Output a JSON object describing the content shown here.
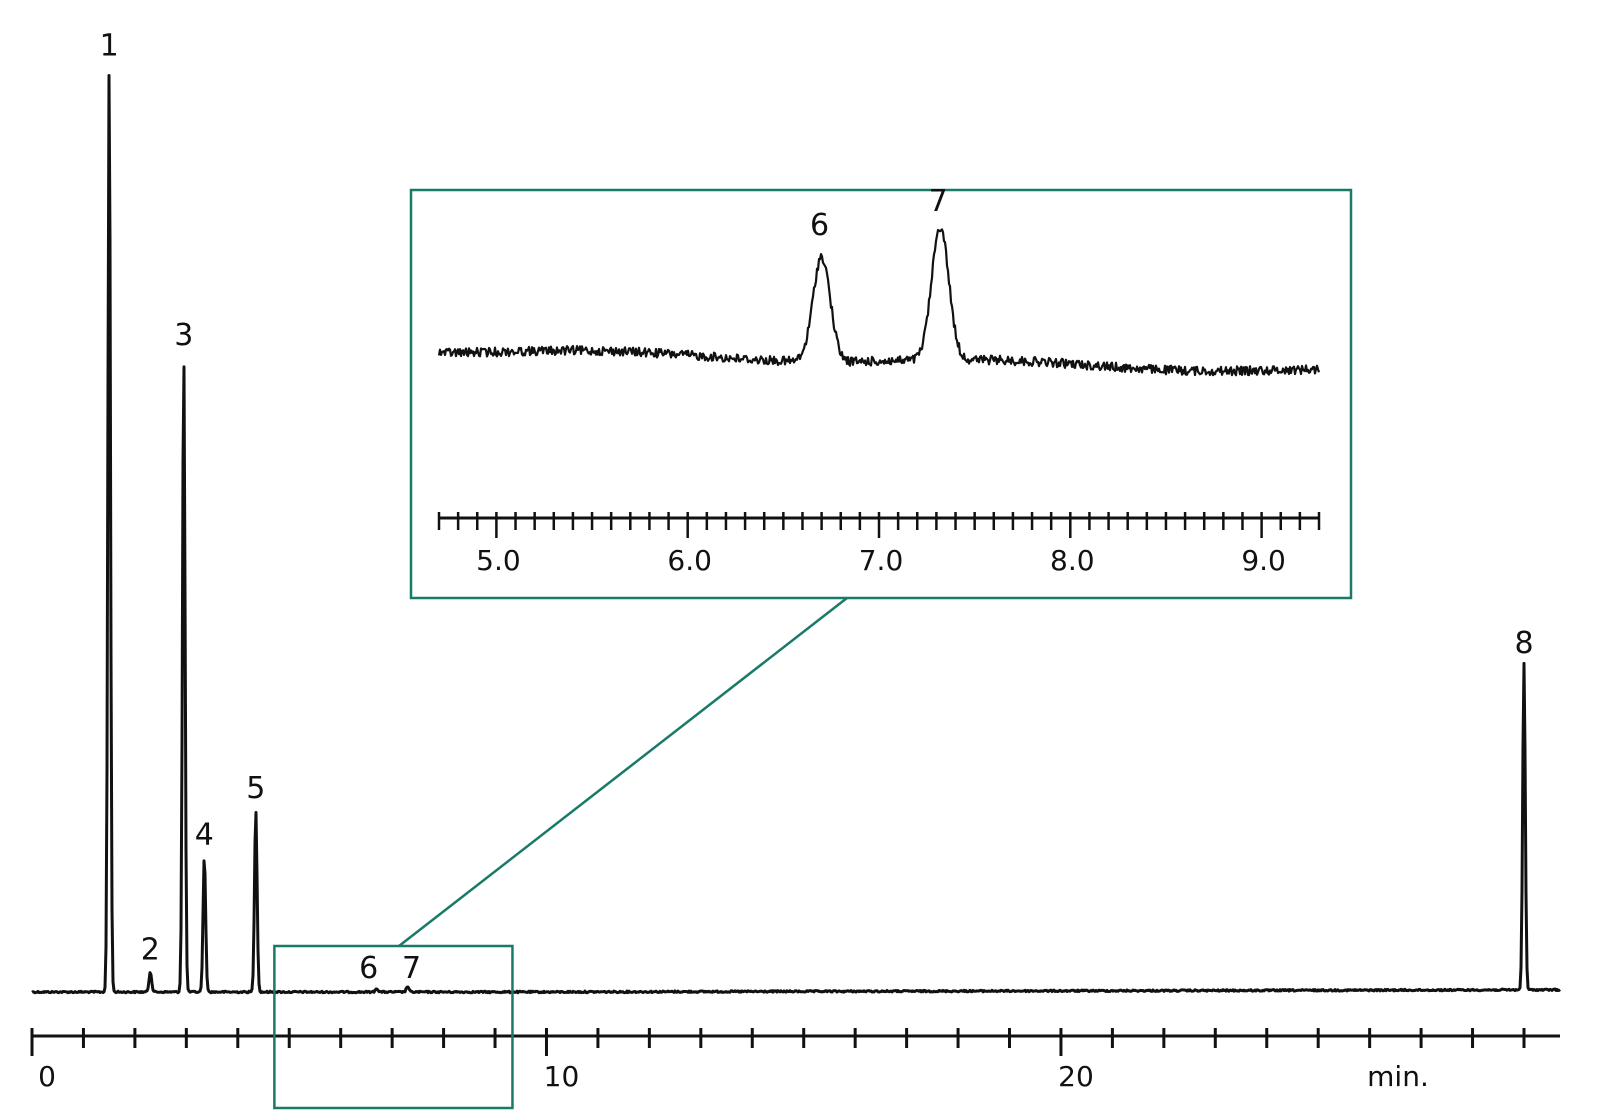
{
  "chart_data": [
    {
      "type": "line",
      "xlabel": "min.",
      "xlim": [
        0,
        29.7
      ],
      "major_ticks": [
        0,
        10,
        20
      ],
      "tick_labels": [
        "0",
        "10",
        "20"
      ],
      "minor_tick_step": 1,
      "peaks": [
        {
          "label": "1",
          "x": 1.5,
          "height": 0.99
        },
        {
          "label": "2",
          "x": 2.3,
          "height": 0.022
        },
        {
          "label": "3",
          "x": 2.95,
          "height": 0.68
        },
        {
          "label": "4",
          "x": 3.35,
          "height": 0.145
        },
        {
          "label": "5",
          "x": 4.35,
          "height": 0.195
        },
        {
          "label": "6",
          "x": 6.7,
          "height": 0.004
        },
        {
          "label": "7",
          "x": 7.3,
          "height": 0.006
        },
        {
          "label": "8",
          "x": 29.0,
          "height": 0.35
        }
      ],
      "zoom_region": [
        4.75,
        9.3
      ]
    },
    {
      "type": "line",
      "xlim": [
        4.7,
        9.3
      ],
      "major_ticks": [
        5.0,
        6.0,
        7.0,
        8.0,
        9.0
      ],
      "tick_labels": [
        "5.0",
        "6.0",
        "7.0",
        "8.0",
        "9.0"
      ],
      "minor_tick_step": 0.1,
      "peaks": [
        {
          "label": "6",
          "x": 6.7,
          "height": 0.75
        },
        {
          "label": "7",
          "x": 7.32,
          "height": 0.95
        }
      ]
    }
  ],
  "colors": {
    "trace": "#111111",
    "highlight": "#1a7a68"
  }
}
